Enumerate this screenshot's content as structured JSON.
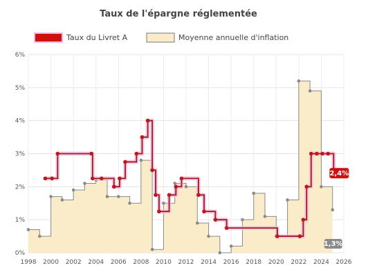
{
  "chart_data": {
    "type": "line",
    "title": "Taux de l'épargne réglementée",
    "xlabel": "",
    "ylabel": "",
    "xlim": [
      1998,
      2026
    ],
    "ylim": [
      0,
      6
    ],
    "x_ticks": [
      "1998",
      "2000",
      "2002",
      "2004",
      "2006",
      "2008",
      "2010",
      "2012",
      "2014",
      "2016",
      "2018",
      "2020",
      "2022",
      "2024",
      "2026"
    ],
    "y_ticks": [
      "0%",
      "1%",
      "2%",
      "3%",
      "4%",
      "5%",
      "6%"
    ],
    "grid": true,
    "legend_position": "top",
    "series": [
      {
        "name": "Taux du Livret A",
        "style": "step",
        "color": "#cc1111",
        "end_label": "2,4%",
        "points": [
          [
            1999.5,
            2.25
          ],
          [
            2000.1,
            2.25
          ],
          [
            2000.6,
            3.0
          ],
          [
            2003.6,
            3.0
          ],
          [
            2003.7,
            2.25
          ],
          [
            2004.5,
            2.25
          ],
          [
            2005.6,
            2.0
          ],
          [
            2006.1,
            2.25
          ],
          [
            2006.6,
            2.75
          ],
          [
            2007.6,
            3.0
          ],
          [
            2008.1,
            3.5
          ],
          [
            2008.6,
            4.0
          ],
          [
            2009.0,
            2.5
          ],
          [
            2009.3,
            1.75
          ],
          [
            2009.6,
            1.25
          ],
          [
            2010.5,
            1.75
          ],
          [
            2011.1,
            2.0
          ],
          [
            2011.6,
            2.25
          ],
          [
            2013.1,
            1.75
          ],
          [
            2013.6,
            1.25
          ],
          [
            2014.6,
            1.0
          ],
          [
            2015.6,
            0.75
          ],
          [
            2020.1,
            0.5
          ],
          [
            2022.1,
            0.5
          ],
          [
            2022.4,
            1.0
          ],
          [
            2022.7,
            2.0
          ],
          [
            2023.1,
            3.0
          ],
          [
            2023.6,
            3.0
          ],
          [
            2024.1,
            3.0
          ],
          [
            2024.6,
            3.0
          ],
          [
            2025.1,
            2.4
          ]
        ]
      },
      {
        "name": "Moyenne annuelle d'inflation",
        "style": "area-step",
        "color": "#fbecc9",
        "stroke": "#8a8a8a",
        "end_label": "1,3%",
        "points": [
          [
            1998,
            0.7
          ],
          [
            1999,
            0.5
          ],
          [
            2000,
            1.7
          ],
          [
            2001,
            1.6
          ],
          [
            2002,
            1.9
          ],
          [
            2003,
            2.1
          ],
          [
            2004,
            2.2
          ],
          [
            2005,
            1.7
          ],
          [
            2006,
            1.7
          ],
          [
            2007,
            1.5
          ],
          [
            2008,
            2.8
          ],
          [
            2009,
            0.1
          ],
          [
            2010,
            1.5
          ],
          [
            2011,
            2.1
          ],
          [
            2012,
            2.0
          ],
          [
            2013,
            0.9
          ],
          [
            2014,
            0.5
          ],
          [
            2015,
            0.0
          ],
          [
            2016,
            0.2
          ],
          [
            2017,
            1.0
          ],
          [
            2018,
            1.8
          ],
          [
            2019,
            1.1
          ],
          [
            2020,
            0.5
          ],
          [
            2021,
            1.6
          ],
          [
            2022,
            5.2
          ],
          [
            2023,
            4.9
          ],
          [
            2024,
            2.0
          ],
          [
            2025,
            1.3
          ]
        ]
      }
    ]
  },
  "colors": {
    "livret_a": "#cc1111",
    "livret_a_glow": "#f3b8df",
    "inflation_fill": "#fbecc9",
    "inflation_stroke": "#8a8a8a",
    "grid": "#e3e3e3"
  }
}
